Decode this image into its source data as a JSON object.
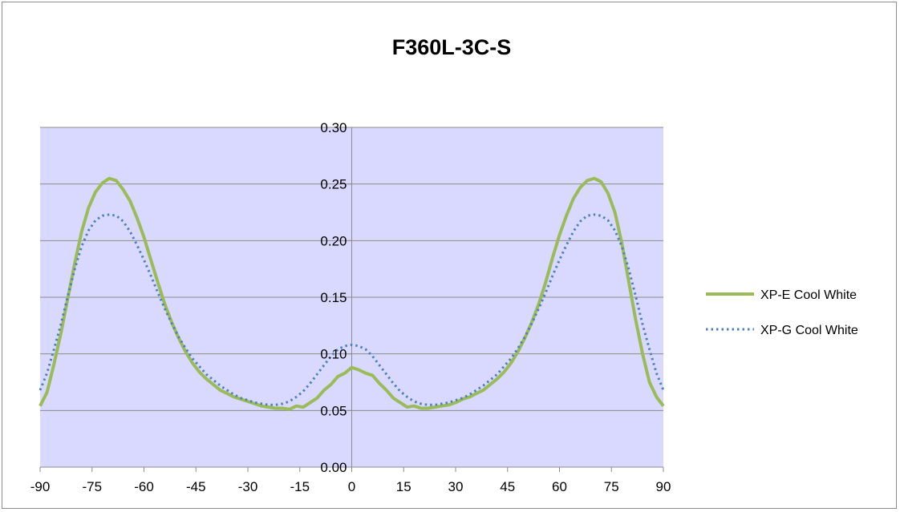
{
  "chart_data": {
    "type": "line",
    "title": "F360L-3C-S",
    "xlabel": "",
    "ylabel": "",
    "xlim": [
      -90,
      90
    ],
    "ylim": [
      0,
      0.3
    ],
    "x_ticks": [
      "-90",
      "-75",
      "-60",
      "-45",
      "-30",
      "-15",
      "0",
      "15",
      "30",
      "45",
      "60",
      "75",
      "90"
    ],
    "y_ticks": [
      "0.00",
      "0.05",
      "0.10",
      "0.15",
      "0.20",
      "0.25",
      "0.30"
    ],
    "grid": "horizontal",
    "legend_position": "right",
    "plot_background": "#d9d9ff",
    "series": [
      {
        "name": "XP-E Cool White",
        "color": "#9bbb59",
        "style": "solid",
        "x": [
          -90,
          -88,
          -86,
          -84,
          -82,
          -80,
          -78,
          -76,
          -74,
          -72,
          -70,
          -68,
          -66,
          -64,
          -62,
          -60,
          -58,
          -56,
          -54,
          -52,
          -50,
          -48,
          -46,
          -44,
          -42,
          -40,
          -38,
          -36,
          -34,
          -32,
          -30,
          -28,
          -26,
          -24,
          -22,
          -20,
          -18,
          -16,
          -14,
          -12,
          -10,
          -8,
          -6,
          -4,
          -2,
          0,
          2,
          4,
          6,
          8,
          10,
          12,
          14,
          16,
          18,
          20,
          22,
          24,
          26,
          28,
          30,
          32,
          34,
          36,
          38,
          40,
          42,
          44,
          46,
          48,
          50,
          52,
          54,
          56,
          58,
          60,
          62,
          64,
          66,
          68,
          70,
          72,
          74,
          76,
          78,
          80,
          82,
          84,
          86,
          88,
          90
        ],
        "values": [
          0.054,
          0.066,
          0.091,
          0.118,
          0.149,
          0.18,
          0.208,
          0.229,
          0.243,
          0.251,
          0.255,
          0.253,
          0.245,
          0.235,
          0.22,
          0.203,
          0.183,
          0.163,
          0.144,
          0.128,
          0.114,
          0.102,
          0.092,
          0.084,
          0.078,
          0.073,
          0.068,
          0.065,
          0.062,
          0.06,
          0.058,
          0.056,
          0.054,
          0.053,
          0.052,
          0.052,
          0.051,
          0.054,
          0.053,
          0.057,
          0.061,
          0.068,
          0.073,
          0.08,
          0.083,
          0.088,
          0.086,
          0.083,
          0.081,
          0.074,
          0.068,
          0.061,
          0.057,
          0.053,
          0.054,
          0.052,
          0.052,
          0.053,
          0.054,
          0.055,
          0.057,
          0.06,
          0.062,
          0.065,
          0.068,
          0.073,
          0.078,
          0.084,
          0.092,
          0.102,
          0.114,
          0.128,
          0.144,
          0.163,
          0.185,
          0.205,
          0.222,
          0.237,
          0.247,
          0.253,
          0.255,
          0.252,
          0.242,
          0.225,
          0.198,
          0.164,
          0.13,
          0.1,
          0.075,
          0.062,
          0.054
        ]
      },
      {
        "name": "XP-G Cool White",
        "color": "#4f81bd",
        "style": "dotted",
        "x": [
          -90,
          -88,
          -86,
          -84,
          -82,
          -80,
          -78,
          -76,
          -74,
          -72,
          -70,
          -68,
          -66,
          -64,
          -62,
          -60,
          -58,
          -56,
          -54,
          -52,
          -50,
          -48,
          -46,
          -44,
          -42,
          -40,
          -38,
          -36,
          -34,
          -32,
          -30,
          -28,
          -26,
          -24,
          -22,
          -20,
          -18,
          -16,
          -14,
          -12,
          -10,
          -8,
          -6,
          -4,
          -2,
          0,
          2,
          4,
          6,
          8,
          10,
          12,
          14,
          16,
          18,
          20,
          22,
          24,
          26,
          28,
          30,
          32,
          34,
          36,
          38,
          40,
          42,
          44,
          46,
          48,
          50,
          52,
          54,
          56,
          58,
          60,
          62,
          64,
          66,
          68,
          70,
          72,
          74,
          76,
          78,
          80,
          82,
          84,
          86,
          88,
          90
        ],
        "values": [
          0.068,
          0.083,
          0.104,
          0.126,
          0.151,
          0.175,
          0.195,
          0.209,
          0.218,
          0.222,
          0.223,
          0.222,
          0.217,
          0.208,
          0.196,
          0.183,
          0.169,
          0.154,
          0.14,
          0.127,
          0.115,
          0.105,
          0.096,
          0.089,
          0.082,
          0.077,
          0.072,
          0.068,
          0.064,
          0.061,
          0.059,
          0.057,
          0.056,
          0.055,
          0.055,
          0.056,
          0.058,
          0.062,
          0.067,
          0.074,
          0.082,
          0.09,
          0.098,
          0.104,
          0.107,
          0.108,
          0.107,
          0.104,
          0.098,
          0.09,
          0.082,
          0.074,
          0.067,
          0.062,
          0.058,
          0.056,
          0.055,
          0.055,
          0.056,
          0.057,
          0.059,
          0.061,
          0.064,
          0.068,
          0.072,
          0.077,
          0.082,
          0.089,
          0.096,
          0.105,
          0.115,
          0.127,
          0.14,
          0.154,
          0.169,
          0.183,
          0.196,
          0.208,
          0.217,
          0.222,
          0.223,
          0.222,
          0.218,
          0.209,
          0.195,
          0.175,
          0.151,
          0.126,
          0.104,
          0.083,
          0.068
        ]
      }
    ]
  }
}
